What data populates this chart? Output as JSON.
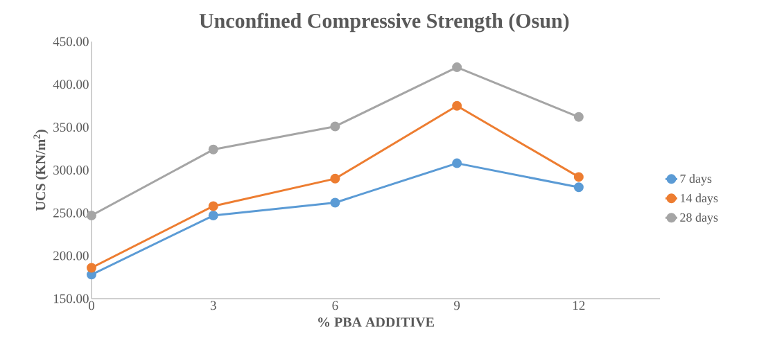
{
  "chart_data": {
    "type": "line",
    "title": "Unconfined Compressive Strength (Osun)",
    "xlabel": "% PBA ADDITIVE",
    "ylabel": "UCS (KN/m$^{2}$)",
    "x": [
      0,
      3,
      6,
      9,
      12
    ],
    "series": [
      {
        "name": "7 days",
        "color": "#5b9bd5",
        "values": [
          178,
          247,
          262,
          308,
          280
        ]
      },
      {
        "name": "14 days",
        "color": "#ed7d31",
        "values": [
          186,
          258,
          290,
          375,
          292
        ]
      },
      {
        "name": "28 days",
        "color": "#a5a5a5",
        "values": [
          247,
          324,
          351,
          420,
          362
        ]
      }
    ],
    "xlim": [
      0,
      14
    ],
    "xticks": [
      0,
      3,
      6,
      9,
      12
    ],
    "ylim": [
      150,
      450
    ],
    "yticks": [
      {
        "value": 150,
        "label": "150.00"
      },
      {
        "value": 200,
        "label": "200.00"
      },
      {
        "value": 250,
        "label": "250.00"
      },
      {
        "value": 300,
        "label": "300.00"
      },
      {
        "value": 350,
        "label": "350.00"
      },
      {
        "value": 400,
        "label": "400.00"
      },
      {
        "value": 450,
        "label": "450.00"
      }
    ],
    "legend": "right",
    "marker": "circle",
    "line_style": "solid",
    "grid": false
  }
}
